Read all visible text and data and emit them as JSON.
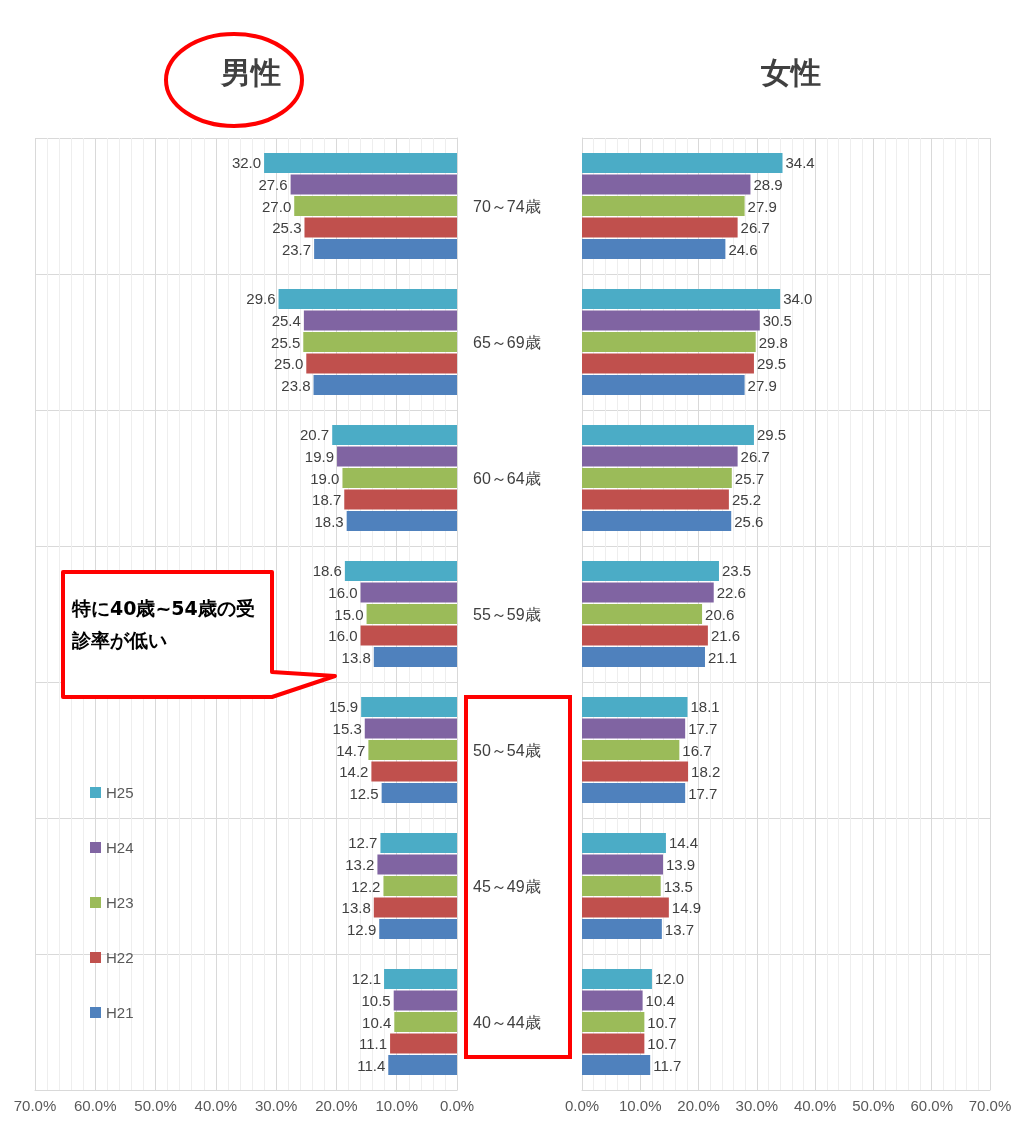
{
  "chart_data": [
    {
      "type": "bar",
      "title": "男性",
      "orientation": "horizontal",
      "categories": [
        "70～74歳",
        "65～69歳",
        "60～64歳",
        "55～59歳",
        "50～54歳",
        "45～49歳",
        "40～44歳"
      ],
      "series": [
        {
          "name": "H25",
          "color": "#4bacc6",
          "values": [
            32.0,
            29.6,
            20.7,
            18.6,
            15.9,
            12.7,
            12.1
          ],
          "value_labels": [
            "32.0",
            "29.6",
            "20.7",
            "18.6",
            "15.9",
            "12.7",
            "12.1"
          ]
        },
        {
          "name": "H24",
          "color": "#8064a2",
          "values": [
            27.6,
            25.4,
            19.9,
            16.0,
            15.3,
            13.2,
            10.5
          ],
          "value_labels": [
            "27.6",
            "25.4",
            "19.9",
            "16.0",
            "15.3",
            "13.2",
            "10.5"
          ]
        },
        {
          "name": "H23",
          "color": "#9bbb59",
          "values": [
            27.0,
            25.5,
            19.0,
            15.0,
            14.7,
            12.2,
            10.4
          ],
          "value_labels": [
            "27.0",
            "25.5",
            "19.0",
            "15.0",
            "14.7",
            "12.2",
            "10.4"
          ]
        },
        {
          "name": "H22",
          "color": "#c0504d",
          "values": [
            25.3,
            25.0,
            18.7,
            16.0,
            14.2,
            13.8,
            11.1
          ],
          "value_labels": [
            "25.3",
            "25.0",
            "18.7",
            "16.0",
            "14.2",
            "13.8",
            "11.1"
          ]
        },
        {
          "name": "H21",
          "color": "#4f81bd",
          "values": [
            23.7,
            23.8,
            18.3,
            13.8,
            12.5,
            12.9,
            11.4
          ],
          "value_labels": [
            "23.7",
            "23.8",
            "18.3",
            "13.8",
            "12.5",
            "12.9",
            "11.4"
          ]
        }
      ],
      "xlim": [
        70,
        0
      ],
      "xticks": [
        {
          "value": 70,
          "label": "70.0%"
        },
        {
          "value": 60,
          "label": "60.0%"
        },
        {
          "value": 50,
          "label": "50.0%"
        },
        {
          "value": 40,
          "label": "40.0%"
        },
        {
          "value": 30,
          "label": "30.0%"
        },
        {
          "value": 20,
          "label": "20.0%"
        },
        {
          "value": 10,
          "label": "10.0%"
        },
        {
          "value": 0,
          "label": "0.0%"
        }
      ],
      "grid": true,
      "legend": "bottom left",
      "annotations": [
        "特に40歳~54歳の受診率が低い"
      ]
    },
    {
      "type": "bar",
      "title": "女性",
      "orientation": "horizontal",
      "categories": [
        null,
        null,
        null,
        null,
        null,
        null,
        null
      ],
      "series": [
        {
          "color": "#4bacc6",
          "values": [
            34.4,
            34.0,
            29.5,
            23.5,
            18.1,
            14.4,
            12.0
          ],
          "value_labels": [
            "34.4",
            "34.0",
            "29.5",
            "23.5",
            "18.1",
            "14.4",
            "12.0"
          ]
        },
        {
          "color": "#8064a2",
          "values": [
            28.9,
            30.5,
            26.7,
            22.6,
            17.7,
            13.9,
            10.4
          ],
          "value_labels": [
            "28.9",
            "30.5",
            "26.7",
            "22.6",
            "17.7",
            "13.9",
            "10.4"
          ]
        },
        {
          "color": "#9bbb59",
          "values": [
            27.9,
            29.8,
            25.7,
            20.6,
            16.7,
            13.5,
            10.7
          ],
          "value_labels": [
            "27.9",
            "29.8",
            "25.7",
            "20.6",
            "16.7",
            "13.5",
            "10.7"
          ]
        },
        {
          "color": "#c0504d",
          "values": [
            26.7,
            29.5,
            25.2,
            21.6,
            18.2,
            14.9,
            10.7
          ],
          "value_labels": [
            "26.7",
            "29.5",
            "25.2",
            "21.6",
            "18.2",
            "14.9",
            "10.7"
          ]
        },
        {
          "color": "#4f81bd",
          "values": [
            24.6,
            27.9,
            25.6,
            21.1,
            17.7,
            13.7,
            11.7
          ],
          "value_labels": [
            "24.6",
            "27.9",
            "25.6",
            "21.1",
            "17.7",
            "13.7",
            "11.7"
          ]
        }
      ],
      "xlim": [
        0,
        70
      ],
      "xticks": [
        {
          "value": 0,
          "label": "0.0%"
        },
        {
          "value": 10,
          "label": "10.0%"
        },
        {
          "value": 20,
          "label": "20.0%"
        },
        {
          "value": 30,
          "label": "30.0%"
        },
        {
          "value": 40,
          "label": "40.0%"
        },
        {
          "value": 50,
          "label": "50.0%"
        },
        {
          "value": 60,
          "label": "60.0%"
        },
        {
          "value": 70,
          "label": "70.0%"
        }
      ],
      "grid": true,
      "tick_labels": "x"
    }
  ]
}
